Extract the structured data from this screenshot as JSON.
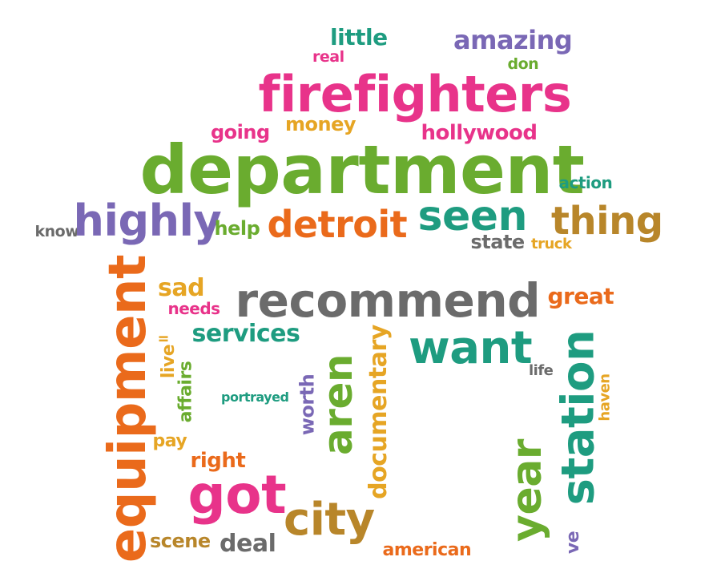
{
  "palette": {
    "pink": "#e8338a",
    "green": "#6aac2f",
    "teal": "#1e9c80",
    "orange": "#ea6a1b",
    "purple": "#7a68b5",
    "gray": "#6b6b6b",
    "gold": "#e6a524",
    "olive": "#b8862a"
  },
  "words": [
    {
      "text": "little",
      "color": "#1e9c80"
    },
    {
      "text": "amazing",
      "color": "#7a68b5"
    },
    {
      "text": "real",
      "color": "#e8338a"
    },
    {
      "text": "don",
      "color": "#6aac2f"
    },
    {
      "text": "firefighters",
      "color": "#e8338a"
    },
    {
      "text": "going",
      "color": "#e8338a"
    },
    {
      "text": "money",
      "color": "#e6a524"
    },
    {
      "text": "hollywood",
      "color": "#e8338a"
    },
    {
      "text": "department",
      "color": "#6aac2f"
    },
    {
      "text": "action",
      "color": "#1e9c80"
    },
    {
      "text": "know",
      "color": "#6b6b6b"
    },
    {
      "text": "highly",
      "color": "#7a68b5"
    },
    {
      "text": "help",
      "color": "#6aac2f"
    },
    {
      "text": "detroit",
      "color": "#ea6a1b"
    },
    {
      "text": "seen",
      "color": "#1e9c80"
    },
    {
      "text": "thing",
      "color": "#b8862a"
    },
    {
      "text": "state",
      "color": "#6b6b6b"
    },
    {
      "text": "truck",
      "color": "#e6a524"
    },
    {
      "text": "sad",
      "color": "#e6a524"
    },
    {
      "text": "needs",
      "color": "#e8338a"
    },
    {
      "text": "recommend",
      "color": "#6b6b6b"
    },
    {
      "text": "great",
      "color": "#ea6a1b"
    },
    {
      "text": "services",
      "color": "#1e9c80"
    },
    {
      "text": "equipment",
      "color": "#ea6a1b"
    },
    {
      "text": "ll",
      "color": "#e6a524"
    },
    {
      "text": "live",
      "color": "#e6a524"
    },
    {
      "text": "affairs",
      "color": "#6aac2f"
    },
    {
      "text": "want",
      "color": "#1e9c80"
    },
    {
      "text": "life",
      "color": "#6b6b6b"
    },
    {
      "text": "documentary",
      "color": "#e6a524"
    },
    {
      "text": "aren",
      "color": "#6aac2f"
    },
    {
      "text": "worth",
      "color": "#7a68b5"
    },
    {
      "text": "portrayed",
      "color": "#1e9c80"
    },
    {
      "text": "station",
      "color": "#1e9c80"
    },
    {
      "text": "haven",
      "color": "#e6a524"
    },
    {
      "text": "pay",
      "color": "#e6a524"
    },
    {
      "text": "right",
      "color": "#ea6a1b"
    },
    {
      "text": "got",
      "color": "#e8338a"
    },
    {
      "text": "city",
      "color": "#b8862a"
    },
    {
      "text": "year",
      "color": "#6aac2f"
    },
    {
      "text": "scene",
      "color": "#b8862a"
    },
    {
      "text": "deal",
      "color": "#6b6b6b"
    },
    {
      "text": "american",
      "color": "#ea6a1b"
    },
    {
      "text": "ve",
      "color": "#7a68b5"
    }
  ]
}
